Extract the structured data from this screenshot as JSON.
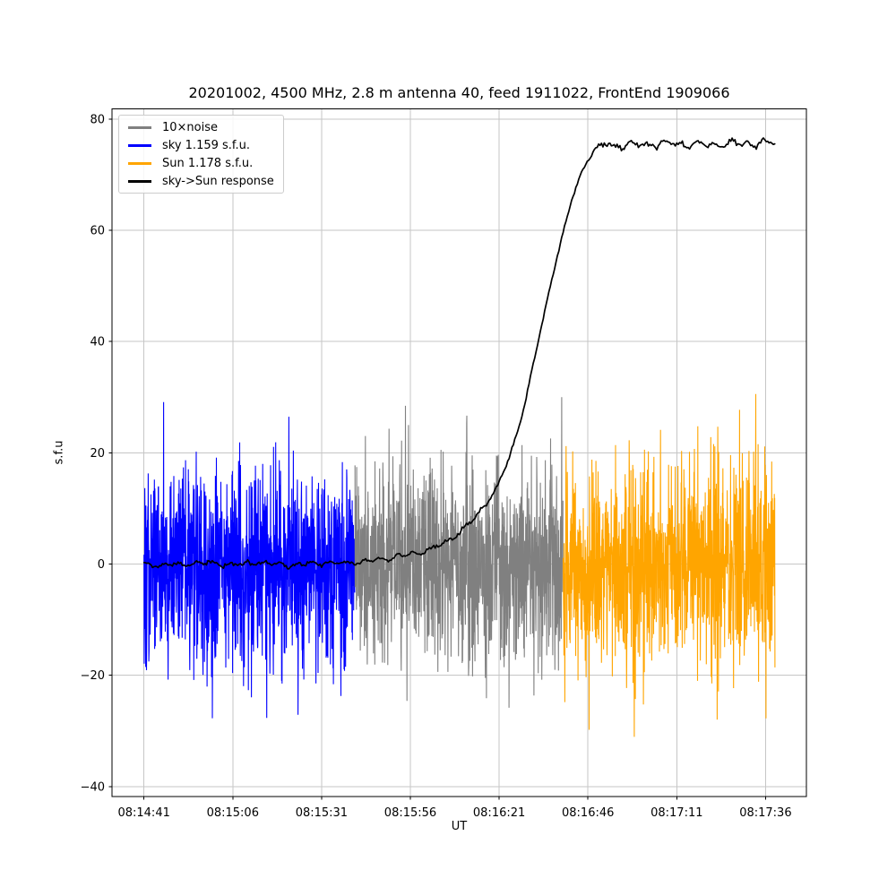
{
  "chart_data": {
    "type": "line",
    "title": "20201002, 4500 MHz, 2.8 m antenna 40, feed 1911022, FrontEnd 1909066",
    "xlabel": "UT",
    "ylabel": "s.f.u",
    "grid": true,
    "legend_position": "upper left",
    "xlim_s": [
      -9,
      186.5
    ],
    "ylim": [
      -41.8,
      81.8
    ],
    "x_ticks": [
      {
        "t": 0,
        "label": "08:14:41"
      },
      {
        "t": 25,
        "label": "08:15:06"
      },
      {
        "t": 50,
        "label": "08:15:31"
      },
      {
        "t": 75,
        "label": "08:15:56"
      },
      {
        "t": 100,
        "label": "08:16:21"
      },
      {
        "t": 125,
        "label": "08:16:46"
      },
      {
        "t": 150,
        "label": "08:17:11"
      },
      {
        "t": 175,
        "label": "08:17:36"
      }
    ],
    "y_ticks": [
      {
        "v": 80,
        "label": "80"
      },
      {
        "v": 60,
        "label": "60"
      },
      {
        "v": 40,
        "label": "40"
      },
      {
        "v": 20,
        "label": "20"
      },
      {
        "v": 0,
        "label": "0"
      },
      {
        "v": -20,
        "label": "−20"
      },
      {
        "v": -40,
        "label": "−40"
      }
    ],
    "legend": [
      {
        "label": "10×noise",
        "color": "#808080"
      },
      {
        "label": "sky 1.159 s.f.u.",
        "color": "#0000ff"
      },
      {
        "label": "Sun 1.178 s.f.u.",
        "color": "#ffa500"
      },
      {
        "label": "sky->Sun response",
        "color": "#000000"
      }
    ],
    "noise_segments": [
      {
        "name": "sky",
        "color": "#0000ff",
        "t_start": 0,
        "t_end": 59.4,
        "std": 9.0,
        "spike_prob": 0.008,
        "spike_scale": 1.5,
        "clip": 36,
        "dt": 0.06,
        "seed": 101
      },
      {
        "name": "noise",
        "color": "#808080",
        "t_start": 59.4,
        "t_end": 118.0,
        "std": 9.0,
        "spike_prob": 0.008,
        "spike_scale": 1.5,
        "clip": 36.5,
        "dt": 0.06,
        "seed": 202
      },
      {
        "name": "Sun",
        "color": "#ffa500",
        "t_start": 118.0,
        "t_end": 177.7,
        "std": 9.0,
        "spike_prob": 0.008,
        "spike_scale": 1.5,
        "clip": 36,
        "dt": 0.06,
        "seed": 303
      }
    ],
    "response": {
      "name": "sky->Sun response",
      "color": "#000000",
      "t_start": 0,
      "t_end": 177.7,
      "rise_start": 62,
      "plateau_start": 128,
      "keypoints": [
        [
          0,
          0.1
        ],
        [
          8,
          -0.2
        ],
        [
          16,
          0.2
        ],
        [
          24,
          -0.1
        ],
        [
          32,
          0.2
        ],
        [
          40,
          -0.2
        ],
        [
          48,
          0.1
        ],
        [
          55,
          0.2
        ],
        [
          60,
          0.4
        ],
        [
          64,
          0.6
        ],
        [
          68,
          0.9
        ],
        [
          72,
          1.3
        ],
        [
          76,
          1.8
        ],
        [
          80,
          2.5
        ],
        [
          84,
          3.5
        ],
        [
          88,
          5.2
        ],
        [
          92,
          7.5
        ],
        [
          96,
          10.5
        ],
        [
          100,
          14.5
        ],
        [
          104,
          21
        ],
        [
          108,
          31
        ],
        [
          112,
          43
        ],
        [
          116,
          54.5
        ],
        [
          120,
          64.5
        ],
        [
          123,
          70.3
        ],
        [
          125.5,
          73.4
        ],
        [
          127.5,
          75.0
        ],
        [
          130,
          75.4
        ],
        [
          140,
          75.4
        ],
        [
          150,
          75.5
        ],
        [
          160,
          75.4
        ],
        [
          170,
          75.6
        ],
        [
          177.7,
          75.7
        ]
      ],
      "wiggle": {
        "p1": 4.7,
        "p2": 9.3,
        "phi1": 0.6,
        "phi2": 2.2,
        "baseline_amp": 0.32,
        "rise_amp": 0.3,
        "plateau_amp": 0.55,
        "noise": 0.15,
        "seed": 913
      }
    },
    "colors": {
      "grid": "#c6c6c6",
      "spine": "#000000",
      "background": "#ffffff"
    }
  }
}
